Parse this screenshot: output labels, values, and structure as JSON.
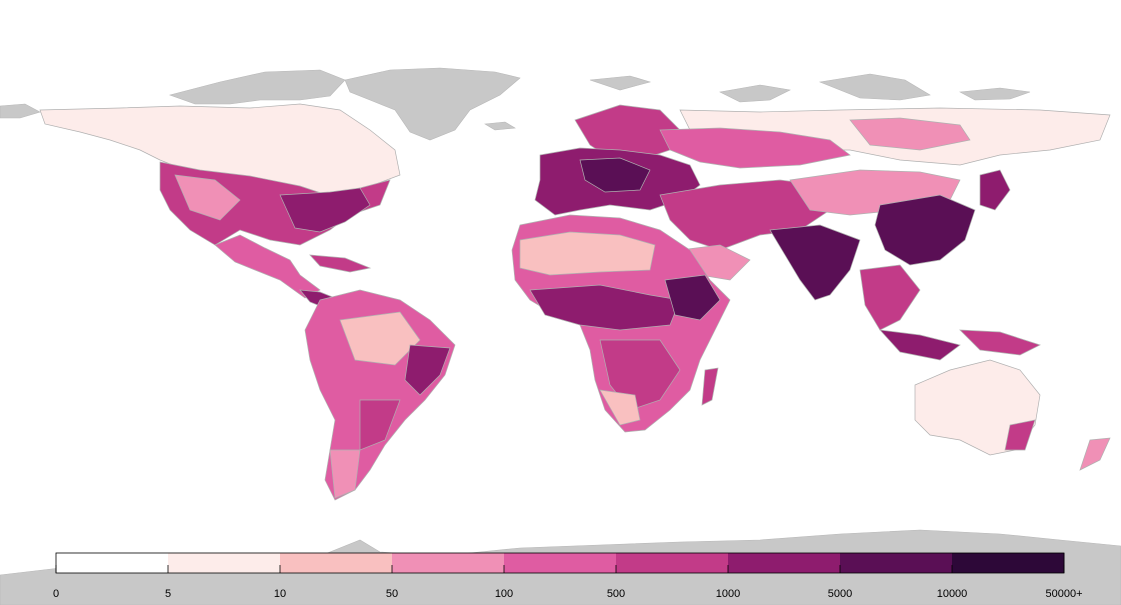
{
  "map": {
    "colors": {
      "land_nodata": "#c8c8c8",
      "border": "#b0b0b0",
      "c0": "#ffffff",
      "c1": "#fdecea",
      "c2": "#f9c0c0",
      "c3": "#f090b6",
      "c4": "#df5ca2",
      "c5": "#c23b88",
      "c6": "#8e1c6e",
      "c7": "#5a0f55",
      "c8": "#2d0838"
    }
  },
  "legend": {
    "bins": [
      {
        "label": "0",
        "color": "#ffffff"
      },
      {
        "label": "5",
        "color": "#fdecea"
      },
      {
        "label": "10",
        "color": "#f9c0c0"
      },
      {
        "label": "50",
        "color": "#f090b6"
      },
      {
        "label": "100",
        "color": "#df5ca2"
      },
      {
        "label": "500",
        "color": "#c23b88"
      },
      {
        "label": "1000",
        "color": "#8e1c6e"
      },
      {
        "label": "5000",
        "color": "#5a0f55"
      },
      {
        "label": "10000",
        "color": "#2d0838"
      },
      {
        "label": "50000+",
        "color": null
      }
    ]
  }
}
